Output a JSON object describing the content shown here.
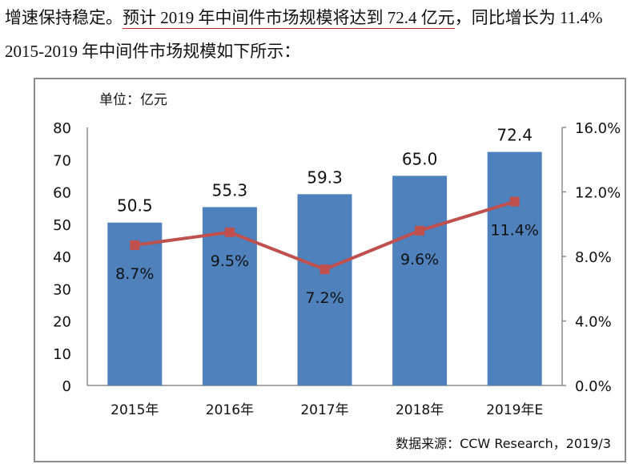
{
  "document": {
    "line1_pre": "增速保持稳定。",
    "line1_underlined": "预计 2019 年中间件市场规模将达到 72.4 亿元",
    "line1_post": "，同比增长为 11.4%",
    "line2": "2015-2019 年中间件市场规模如下所示："
  },
  "chart_data": {
    "type": "bar+line",
    "unit_label": "单位：亿元",
    "source": "数据来源：CCW Research，2019/3",
    "categories": [
      "2015年",
      "2016年",
      "2017年",
      "2018年",
      "2019年E"
    ],
    "series": [
      {
        "type": "bar",
        "axis": "left",
        "values": [
          50.5,
          55.3,
          59.3,
          65.0,
          72.4
        ],
        "labels": [
          "50.5",
          "55.3",
          "59.3",
          "65.0",
          "72.4"
        ],
        "color": "#4f81bd"
      },
      {
        "type": "line",
        "axis": "right",
        "values": [
          8.7,
          9.5,
          7.2,
          9.6,
          11.4
        ],
        "labels": [
          "8.7%",
          "9.5%",
          "7.2%",
          "9.6%",
          "11.4%"
        ],
        "color": "#c0504d"
      }
    ],
    "left_axis": {
      "range": [
        0,
        80
      ],
      "ticks": [
        "0",
        "10",
        "20",
        "30",
        "40",
        "50",
        "60",
        "70",
        "80"
      ]
    },
    "right_axis": {
      "range": [
        0,
        16
      ],
      "ticks": [
        "0.0%",
        "4.0%",
        "8.0%",
        "12.0%",
        "16.0%"
      ]
    },
    "grid": false
  }
}
